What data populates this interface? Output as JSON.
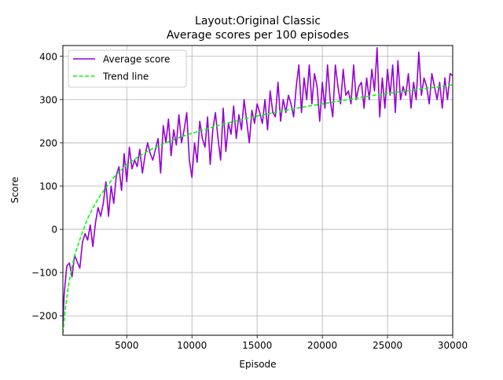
{
  "chart_data": {
    "type": "line",
    "title": "Layout:Original Classic",
    "subtitle": "Average scores per 100 episodes",
    "xlabel": "Episode",
    "ylabel": "Score",
    "xlim": [
      100,
      30000
    ],
    "ylim": [
      -245,
      425
    ],
    "xticks": [
      5000,
      10000,
      15000,
      20000,
      25000,
      30000
    ],
    "yticks": [
      -200,
      -100,
      0,
      100,
      200,
      300,
      400
    ],
    "grid": true,
    "legend_position": "top-left",
    "series": [
      {
        "name": "Average score",
        "color": "#9400d3",
        "style": "solid",
        "x": [
          100,
          200,
          400,
          600,
          800,
          1000,
          1200,
          1400,
          1600,
          1800,
          2000,
          2200,
          2400,
          2600,
          2800,
          3000,
          3200,
          3400,
          3600,
          3800,
          4000,
          4200,
          4400,
          4600,
          4800,
          5000,
          5200,
          5400,
          5600,
          5800,
          6000,
          6200,
          6400,
          6600,
          6800,
          7000,
          7200,
          7400,
          7600,
          7800,
          8000,
          8200,
          8400,
          8600,
          8800,
          9000,
          9200,
          9400,
          9600,
          9800,
          10000,
          10200,
          10400,
          10600,
          10800,
          11000,
          11200,
          11400,
          11600,
          11800,
          12000,
          12200,
          12400,
          12600,
          12800,
          13000,
          13200,
          13400,
          13600,
          13800,
          14000,
          14200,
          14400,
          14600,
          14800,
          15000,
          15200,
          15400,
          15600,
          15800,
          16000,
          16200,
          16400,
          16600,
          16800,
          17000,
          17200,
          17400,
          17600,
          17800,
          18000,
          18200,
          18400,
          18600,
          18800,
          19000,
          19200,
          19400,
          19600,
          19800,
          20000,
          20200,
          20400,
          20600,
          20800,
          21000,
          21200,
          21400,
          21600,
          21800,
          22000,
          22200,
          22400,
          22600,
          22800,
          23000,
          23200,
          23400,
          23600,
          23800,
          24000,
          24200,
          24400,
          24600,
          24800,
          25000,
          25200,
          25400,
          25600,
          25800,
          26000,
          26200,
          26400,
          26600,
          26800,
          27000,
          27200,
          27400,
          27600,
          27800,
          28000,
          28200,
          28400,
          28600,
          28800,
          29000,
          29200,
          29400,
          29600,
          29800,
          30000
        ],
        "y": [
          -220,
          -150,
          -85,
          -78,
          -110,
          -60,
          -75,
          -90,
          -30,
          -10,
          -25,
          10,
          -40,
          15,
          50,
          30,
          60,
          110,
          30,
          100,
          60,
          125,
          145,
          90,
          175,
          110,
          190,
          140,
          160,
          145,
          185,
          130,
          170,
          200,
          175,
          160,
          185,
          210,
          130,
          240,
          200,
          255,
          170,
          230,
          195,
          265,
          200,
          230,
          270,
          160,
          120,
          200,
          155,
          250,
          210,
          190,
          260,
          150,
          230,
          270,
          210,
          160,
          280,
          180,
          245,
          220,
          285,
          210,
          265,
          230,
          300,
          250,
          200,
          275,
          245,
          290,
          270,
          245,
          300,
          230,
          320,
          270,
          260,
          340,
          250,
          300,
          270,
          310,
          290,
          260,
          330,
          380,
          270,
          350,
          300,
          380,
          290,
          360,
          330,
          250,
          340,
          280,
          380,
          300,
          260,
          380,
          330,
          290,
          370,
          310,
          320,
          290,
          380,
          300,
          330,
          340,
          280,
          350,
          300,
          370,
          320,
          420,
          260,
          350,
          280,
          370,
          310,
          380,
          270,
          390,
          300,
          330,
          310,
          360,
          280,
          340,
          300,
          410,
          310,
          350,
          330,
          290,
          360,
          330,
          300,
          340,
          280,
          350,
          300,
          360,
          355
        ]
      },
      {
        "name": "Trend line",
        "color": "#00ff00",
        "style": "dashed",
        "x": [
          100,
          250,
          500,
          750,
          1000,
          1500,
          2000,
          2500,
          3000,
          3500,
          4000,
          4500,
          5000,
          6000,
          7000,
          8000,
          9000,
          10000,
          11000,
          12000,
          13000,
          14000,
          15000,
          16000,
          17000,
          18000,
          19000,
          20000,
          21000,
          22000,
          23000,
          24000,
          25000,
          26000,
          27000,
          28000,
          29000,
          30000
        ],
        "y": [
          -240,
          -195,
          -135,
          -95,
          -60,
          -15,
          25,
          55,
          80,
          100,
          120,
          135,
          150,
          170,
          187,
          200,
          212,
          222,
          231,
          240,
          248,
          255,
          262,
          268,
          274,
          280,
          285,
          290,
          295,
          300,
          305,
          310,
          314,
          318,
          322,
          326,
          330,
          334
        ]
      }
    ]
  }
}
